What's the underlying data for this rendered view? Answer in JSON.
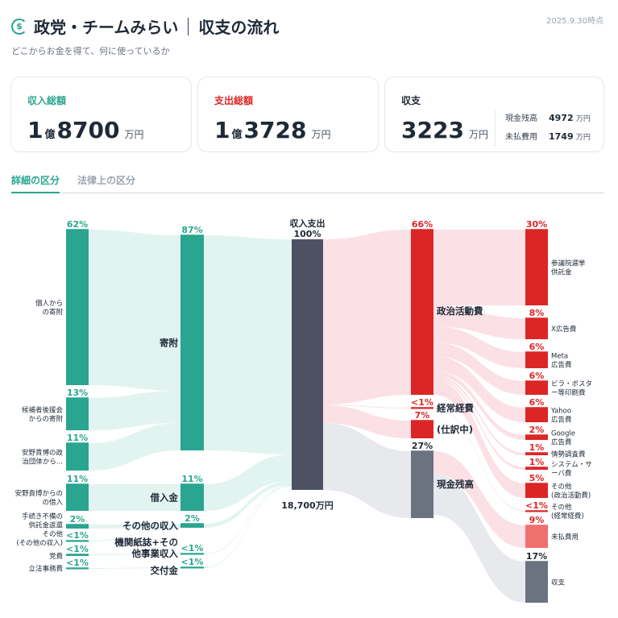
{
  "header": {
    "title_party": "政党・チームみらい",
    "title_page": "収支の流れ",
    "subtitle": "どこからお金を得て、何に使っているか",
    "as_of": "2025.9.30時点",
    "icon": "money-cycle-icon"
  },
  "cards": {
    "income": {
      "label": "収入総額",
      "oku": "1",
      "oku_unit": "億",
      "value": "8700",
      "unit": "万円",
      "color": "#2aa58f"
    },
    "expense": {
      "label": "支出総額",
      "oku": "1",
      "oku_unit": "億",
      "value": "3728",
      "unit": "万円",
      "color": "#dc2626"
    },
    "balance": {
      "label": "収支",
      "value": "3223",
      "unit": "万円",
      "cash_label": "現金残高",
      "cash_value": "4972",
      "cash_unit": "万円",
      "unpaid_label": "未払費用",
      "unpaid_value": "1749",
      "unpaid_unit": "万円"
    }
  },
  "tabs": [
    {
      "label": "詳細の区分",
      "active": true
    },
    {
      "label": "法律上の区分",
      "active": false
    }
  ],
  "colors": {
    "income": "#2aa58f",
    "income_flow": "#dff3ee",
    "expense": "#dc2626",
    "expense_flow": "#fbdde3",
    "unpaid": "#f07070",
    "cash": "#6b7280",
    "cash_flow": "#e5e7eb",
    "total": "#4d5263"
  },
  "sankey": {
    "total_label": "18,700万円",
    "nodes": [
      {
        "id": "kojin",
        "label": [
          "個人から",
          "の寄附"
        ],
        "pct": "62%"
      },
      {
        "id": "koenkai",
        "label": [
          "候補者後援会",
          "からの寄附"
        ],
        "pct": "13%"
      },
      {
        "id": "dantai",
        "label": [
          "安野貴博の政",
          "治団体から..."
        ],
        "pct": "11%"
      },
      {
        "id": "kariire_src",
        "label": [
          "安野貴博からの",
          "の借入"
        ],
        "pct": "11%"
      },
      {
        "id": "tetsuzuki",
        "label": [
          "手続き不備の",
          "供託金返還"
        ],
        "pct": "2%"
      },
      {
        "id": "sonota_src",
        "label": [
          "その他",
          "(その他の収入)"
        ],
        "pct": "<1%"
      },
      {
        "id": "tohi",
        "label": [
          "党費"
        ],
        "pct": "<1%"
      },
      {
        "id": "rippo",
        "label": [
          "立法事務費"
        ],
        "pct": "<1%"
      },
      {
        "id": "kifu",
        "label": [
          "寄附"
        ],
        "pct": "87%"
      },
      {
        "id": "kariire",
        "label": [
          "借入金"
        ],
        "pct": "11%"
      },
      {
        "id": "sonota_income",
        "label": [
          "その他の収入"
        ],
        "pct": "2%"
      },
      {
        "id": "kikanshi",
        "label": [
          "機関紙誌+その",
          "他事業収入"
        ],
        "pct": "<1%"
      },
      {
        "id": "kofukin",
        "label": [
          "交付金"
        ],
        "pct": "<1%"
      },
      {
        "id": "total",
        "label": [
          "収入支出"
        ],
        "pct": "100%"
      },
      {
        "id": "seiji",
        "label": [
          "政治活動費"
        ],
        "pct": "66%"
      },
      {
        "id": "keijo",
        "label": [
          "経常経費"
        ],
        "pct": "<1%"
      },
      {
        "id": "shiwake",
        "label": [
          "(仕訳中)"
        ],
        "pct": "7%"
      },
      {
        "id": "cash",
        "label": [
          "現金残高"
        ],
        "pct": "27%"
      },
      {
        "id": "kyotaku",
        "label": [
          "参議院選挙",
          "供託金"
        ],
        "pct": "30%"
      },
      {
        "id": "x_ad",
        "label": [
          "X広告費"
        ],
        "pct": "8%"
      },
      {
        "id": "meta_ad",
        "label": [
          "Meta",
          "広告費"
        ],
        "pct": "6%"
      },
      {
        "id": "bira",
        "label": [
          "ビラ・ポスタ",
          "ー等印刷費"
        ],
        "pct": "6%"
      },
      {
        "id": "yahoo_ad",
        "label": [
          "Yahoo",
          "広告費"
        ],
        "pct": "6%"
      },
      {
        "id": "google_ad",
        "label": [
          "Google",
          "広告費"
        ],
        "pct": "2%"
      },
      {
        "id": "josei",
        "label": [
          "情勢調査費"
        ],
        "pct": "1%"
      },
      {
        "id": "system",
        "label": [
          "システム・サ",
          "ーバ費"
        ],
        "pct": "1%"
      },
      {
        "id": "sonota_seiji",
        "label": [
          "その他",
          "(政治活動費)"
        ],
        "pct": "5%"
      },
      {
        "id": "sonota_keijo",
        "label": [
          "その他",
          "(経常経費)"
        ],
        "pct": "<1%"
      },
      {
        "id": "mibarai",
        "label": [
          "未払費用"
        ],
        "pct": "9%"
      },
      {
        "id": "shushi",
        "label": [
          "収支"
        ],
        "pct": "17%"
      }
    ]
  }
}
